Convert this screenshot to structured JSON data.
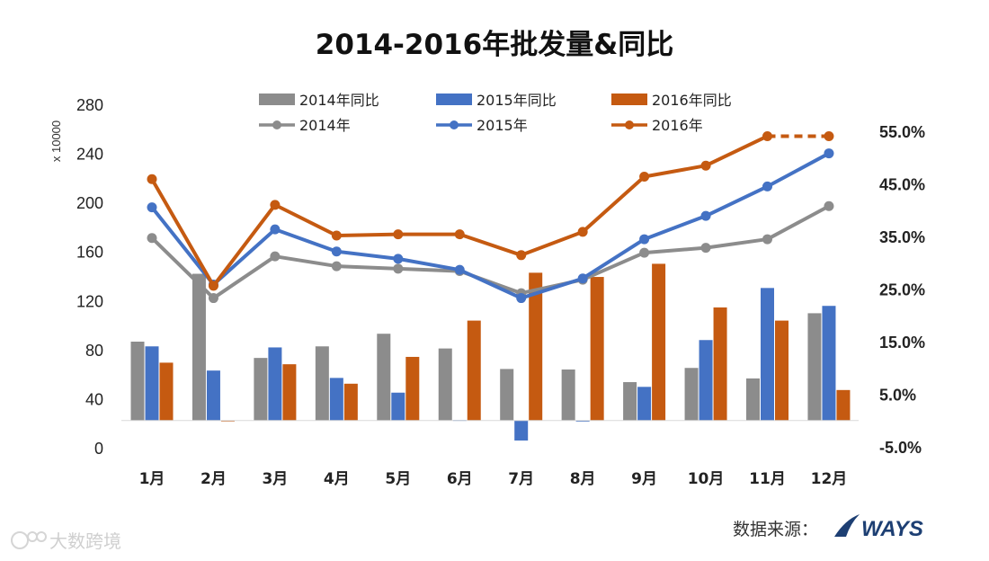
{
  "chart_data": {
    "type": "bar",
    "title": "2014-2016年批发量&同比",
    "categories": [
      "1月",
      "2月",
      "3月",
      "4月",
      "5月",
      "6月",
      "7月",
      "8月",
      "9月",
      "10月",
      "11月",
      "12月"
    ],
    "y_left": {
      "unit_label": "x 10000",
      "ylim": [
        0,
        280
      ],
      "ticks": [
        "0",
        "40",
        "80",
        "120",
        "160",
        "200",
        "240",
        "280"
      ]
    },
    "y_right": {
      "ylim": [
        -0.05,
        0.6
      ],
      "ticks": [
        "-5.0%",
        "5.0%",
        "15.0%",
        "25.0%",
        "35.0%",
        "45.0%",
        "55.0%"
      ]
    },
    "bar_series": [
      {
        "name": "2014年同比",
        "axis": "right",
        "color": "#8c8c8c",
        "values": [
          0.15,
          0.279,
          0.119,
          0.141,
          0.165,
          0.137,
          0.098,
          0.097,
          0.073,
          0.1,
          0.08,
          0.204
        ]
      },
      {
        "name": "2015年同比",
        "axis": "right",
        "color": "#4472c4",
        "values": [
          0.141,
          0.095,
          0.139,
          0.081,
          0.053,
          0.001,
          -0.038,
          -0.002,
          0.064,
          0.153,
          0.252,
          0.218
        ]
      },
      {
        "name": "2016年同比",
        "axis": "right",
        "color": "#c55a11",
        "values": [
          0.11,
          0.0,
          0.107,
          0.07,
          0.121,
          0.19,
          0.281,
          0.273,
          0.298,
          0.215,
          0.19,
          0.058
        ]
      }
    ],
    "line_series": [
      {
        "name": "2014年",
        "axis": "left",
        "color": "#8c8c8c",
        "values": [
          171,
          122,
          156,
          148,
          146,
          144,
          126,
          137,
          159,
          163,
          170,
          197
        ]
      },
      {
        "name": "2015年",
        "axis": "left",
        "color": "#4472c4",
        "values": [
          196,
          133,
          178,
          160,
          154,
          145,
          122,
          138,
          170,
          189,
          213,
          240
        ]
      },
      {
        "name": "2016年",
        "axis": "left",
        "color": "#c55a11",
        "values": [
          219,
          132,
          198,
          173,
          174,
          174,
          157,
          176,
          221,
          230,
          254,
          254
        ],
        "dashed_last_segment": true
      }
    ],
    "legend_position": "top",
    "grid": false
  },
  "footer": {
    "source_label": "数据来源：",
    "logo_text": "WAYS"
  },
  "watermark": {
    "text": "大数跨境"
  }
}
